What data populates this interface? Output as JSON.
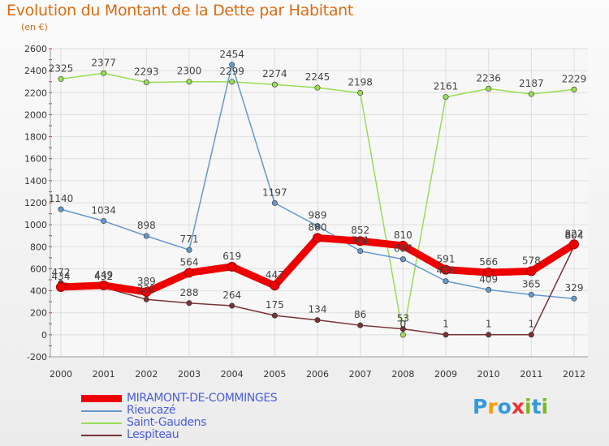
{
  "header": {
    "title": "Evolution du Montant de la Dette par Habitant",
    "subtitle": "(en €)"
  },
  "chart_data": {
    "type": "line",
    "title": "Evolution du Montant de la Dette par Habitant",
    "subtitle": "(en €)",
    "xlabel": "",
    "ylabel": "",
    "categories": [
      "2000",
      "2001",
      "2002",
      "2003",
      "2004",
      "2005",
      "2006",
      "2007",
      "2008",
      "2009",
      "2010",
      "2011",
      "2012"
    ],
    "ylim": [
      -200,
      2600
    ],
    "yticks": [
      "-200",
      "0",
      "200",
      "400",
      "600",
      "800",
      "1000",
      "1200",
      "1400",
      "1600",
      "1800",
      "2000",
      "2200",
      "2400",
      "2600"
    ],
    "grid": true,
    "legend_position": "bottom",
    "series": [
      {
        "name": "MIRAMONT-DE-COMMINGES",
        "color": "#ee0000",
        "values": [
          434,
          449,
          389,
          564,
          619,
          447,
          880,
          852,
          810,
          591,
          566,
          578,
          822
        ],
        "labels": [
          "434",
          "449",
          "389",
          "564",
          "619",
          "447",
          "880",
          "852",
          "810",
          "591",
          "566",
          "578",
          "822"
        ]
      },
      {
        "name": "Rieucazé",
        "color": "#6699cc",
        "values": [
          1140,
          1034,
          898,
          771,
          2454,
          1197,
          989,
          761,
          687,
          488,
          409,
          365,
          329
        ],
        "labels": [
          "1140",
          "1034",
          "898",
          "771",
          "2454",
          "1197",
          "989",
          "761",
          "687",
          "488",
          "409",
          "365",
          "329"
        ]
      },
      {
        "name": "Saint-Gaudens",
        "color": "#99dd55",
        "values": [
          2325,
          2377,
          2293,
          2300,
          2299,
          2274,
          2245,
          2198,
          0,
          2161,
          2236,
          2187,
          2229
        ],
        "labels": [
          "2325",
          "2377",
          "2293",
          "2300",
          "2299",
          "2274",
          "2245",
          "2198",
          "0",
          "2161",
          "2236",
          "2187",
          "2229"
        ]
      },
      {
        "name": "Lespiteau",
        "color": "#773333",
        "values": [
          472,
          432,
          321,
          288,
          264,
          175,
          134,
          86,
          53,
          1,
          1,
          1,
          804
        ],
        "labels": [
          "472",
          "432",
          "321",
          "288",
          "264",
          "175",
          "134",
          "86",
          "53",
          "1",
          "1",
          "1",
          "804"
        ]
      }
    ]
  },
  "logo": {
    "text": "Proxiti",
    "colors": [
      "#3399dd",
      "#ee3333",
      "#77bb22",
      "#ff9900"
    ]
  }
}
